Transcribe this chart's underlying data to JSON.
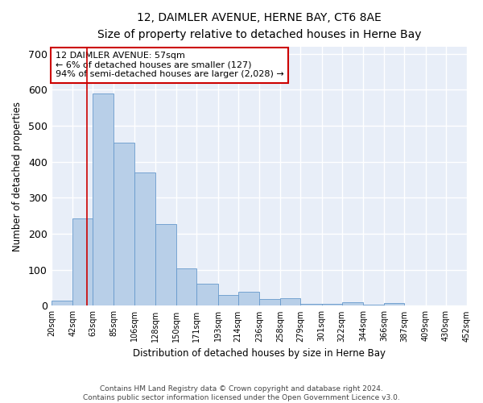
{
  "title": "12, DAIMLER AVENUE, HERNE BAY, CT6 8AE",
  "subtitle": "Size of property relative to detached houses in Herne Bay",
  "xlabel": "Distribution of detached houses by size in Herne Bay",
  "ylabel": "Number of detached properties",
  "annotation_line1": "12 DAIMLER AVENUE: 57sqm",
  "annotation_line2": "← 6% of detached houses are smaller (127)",
  "annotation_line3": "94% of semi-detached houses are larger (2,028) →",
  "property_size_sqm": 57,
  "bar_color": "#b8cfe8",
  "bar_edge_color": "#6699cc",
  "marker_color": "#cc0000",
  "background_color": "#e8eef8",
  "footer_text": "Contains HM Land Registry data © Crown copyright and database right 2024.\nContains public sector information licensed under the Open Government Licence v3.0.",
  "bin_labels": [
    "20sqm",
    "42sqm",
    "63sqm",
    "85sqm",
    "106sqm",
    "128sqm",
    "150sqm",
    "171sqm",
    "193sqm",
    "214sqm",
    "236sqm",
    "258sqm",
    "279sqm",
    "301sqm",
    "322sqm",
    "344sqm",
    "366sqm",
    "387sqm",
    "409sqm",
    "430sqm",
    "452sqm"
  ],
  "bin_left": [
    20,
    42,
    63,
    85,
    106,
    128,
    150,
    171,
    193,
    214,
    236,
    258,
    279,
    301,
    322,
    344,
    366,
    387,
    409,
    430
  ],
  "bin_right": [
    42,
    63,
    85,
    106,
    128,
    150,
    171,
    193,
    214,
    236,
    258,
    279,
    301,
    322,
    344,
    366,
    387,
    409,
    430,
    452
  ],
  "bar_heights": [
    15,
    243,
    590,
    452,
    370,
    228,
    105,
    62,
    30,
    38,
    18,
    20,
    5,
    5,
    10,
    3,
    8,
    2,
    2,
    2
  ],
  "ylim": [
    0,
    720
  ],
  "yticks": [
    0,
    100,
    200,
    300,
    400,
    500,
    600,
    700
  ],
  "xlim_left": 20,
  "xlim_right": 452
}
